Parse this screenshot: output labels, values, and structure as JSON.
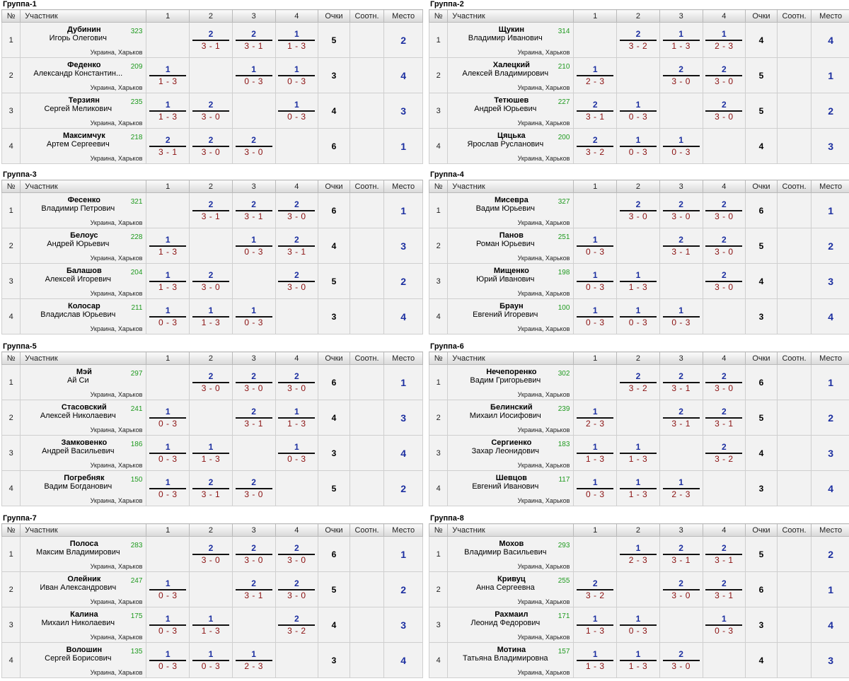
{
  "headers": {
    "no": "№",
    "participant": "Участник",
    "cols": [
      "1",
      "2",
      "3",
      "4"
    ],
    "points": "Очки",
    "ratio": "Соотн.",
    "place": "Место"
  },
  "groups": [
    {
      "title": "Группа-1",
      "players": [
        {
          "no": "1",
          "last": "Дубинин",
          "first": "Игорь Олегович",
          "rating": "323",
          "city": "Украина, Харьков",
          "results": [
            null,
            {
              "w": "2",
              "s": "3 - 1"
            },
            {
              "w": "2",
              "s": "3 - 1"
            },
            {
              "w": "1",
              "s": "1 - 3"
            }
          ],
          "points": "5",
          "ratio": "",
          "place": "2"
        },
        {
          "no": "2",
          "last": "Феденко",
          "first": "Александр Константин...",
          "rating": "209",
          "city": "Украина, Харьков",
          "results": [
            {
              "w": "1",
              "s": "1 - 3"
            },
            null,
            {
              "w": "1",
              "s": "0 - 3"
            },
            {
              "w": "1",
              "s": "0 - 3"
            }
          ],
          "points": "3",
          "ratio": "",
          "place": "4"
        },
        {
          "no": "3",
          "last": "Терзиян",
          "first": "Сергей Меликович",
          "rating": "235",
          "city": "Украина, Харьков",
          "results": [
            {
              "w": "1",
              "s": "1 - 3"
            },
            {
              "w": "2",
              "s": "3 - 0"
            },
            null,
            {
              "w": "1",
              "s": "0 - 3"
            }
          ],
          "points": "4",
          "ratio": "",
          "place": "3"
        },
        {
          "no": "4",
          "last": "Максимчук",
          "first": "Артем Сергеевич",
          "rating": "218",
          "city": "Украина, Харьков",
          "results": [
            {
              "w": "2",
              "s": "3 - 1"
            },
            {
              "w": "2",
              "s": "3 - 0"
            },
            {
              "w": "2",
              "s": "3 - 0"
            },
            null
          ],
          "points": "6",
          "ratio": "",
          "place": "1"
        }
      ]
    },
    {
      "title": "Группа-2",
      "players": [
        {
          "no": "1",
          "last": "Щукин",
          "first": "Владимир Иванович",
          "rating": "314",
          "city": "Украина, Харьков",
          "results": [
            null,
            {
              "w": "2",
              "s": "3 - 2"
            },
            {
              "w": "1",
              "s": "1 - 3"
            },
            {
              "w": "1",
              "s": "2 - 3"
            }
          ],
          "points": "4",
          "ratio": "",
          "place": "4"
        },
        {
          "no": "2",
          "last": "Халецкий",
          "first": "Алексей Владимирович",
          "rating": "210",
          "city": "Украина, Харьков",
          "results": [
            {
              "w": "1",
              "s": "2 - 3"
            },
            null,
            {
              "w": "2",
              "s": "3 - 0"
            },
            {
              "w": "2",
              "s": "3 - 0"
            }
          ],
          "points": "5",
          "ratio": "",
          "place": "1"
        },
        {
          "no": "3",
          "last": "Тетюшев",
          "first": "Андрей Юрьевич",
          "rating": "227",
          "city": "Украина, Харьков",
          "results": [
            {
              "w": "2",
              "s": "3 - 1"
            },
            {
              "w": "1",
              "s": "0 - 3"
            },
            null,
            {
              "w": "2",
              "s": "3 - 0"
            }
          ],
          "points": "5",
          "ratio": "",
          "place": "2"
        },
        {
          "no": "4",
          "last": "Цяцька",
          "first": "Ярослав Русланович",
          "rating": "200",
          "city": "Украина, Харьков",
          "results": [
            {
              "w": "2",
              "s": "3 - 2"
            },
            {
              "w": "1",
              "s": "0 - 3"
            },
            {
              "w": "1",
              "s": "0 - 3"
            },
            null
          ],
          "points": "4",
          "ratio": "",
          "place": "3"
        }
      ]
    },
    {
      "title": "Группа-3",
      "players": [
        {
          "no": "1",
          "last": "Фесенко",
          "first": "Владимир Петрович",
          "rating": "321",
          "city": "Украина, Харьков",
          "results": [
            null,
            {
              "w": "2",
              "s": "3 - 1"
            },
            {
              "w": "2",
              "s": "3 - 1"
            },
            {
              "w": "2",
              "s": "3 - 0"
            }
          ],
          "points": "6",
          "ratio": "",
          "place": "1"
        },
        {
          "no": "2",
          "last": "Белоус",
          "first": "Андрей Юрьевич",
          "rating": "228",
          "city": "Украина, Харьков",
          "results": [
            {
              "w": "1",
              "s": "1 - 3"
            },
            null,
            {
              "w": "1",
              "s": "0 - 3"
            },
            {
              "w": "2",
              "s": "3 - 1"
            }
          ],
          "points": "4",
          "ratio": "",
          "place": "3"
        },
        {
          "no": "3",
          "last": "Балашов",
          "first": "Алексей Игоревич",
          "rating": "204",
          "city": "Украина, Харьков",
          "results": [
            {
              "w": "1",
              "s": "1 - 3"
            },
            {
              "w": "2",
              "s": "3 - 0"
            },
            null,
            {
              "w": "2",
              "s": "3 - 0"
            }
          ],
          "points": "5",
          "ratio": "",
          "place": "2"
        },
        {
          "no": "4",
          "last": "Колосар",
          "first": "Владислав Юрьевич",
          "rating": "211",
          "city": "Украина, Харьков",
          "results": [
            {
              "w": "1",
              "s": "0 - 3"
            },
            {
              "w": "1",
              "s": "1 - 3"
            },
            {
              "w": "1",
              "s": "0 - 3"
            },
            null
          ],
          "points": "3",
          "ratio": "",
          "place": "4"
        }
      ]
    },
    {
      "title": "Группа-4",
      "players": [
        {
          "no": "1",
          "last": "Мисевра",
          "first": "Вадим Юрьевич",
          "rating": "327",
          "city": "Украина, Харьков",
          "results": [
            null,
            {
              "w": "2",
              "s": "3 - 0"
            },
            {
              "w": "2",
              "s": "3 - 0"
            },
            {
              "w": "2",
              "s": "3 - 0"
            }
          ],
          "points": "6",
          "ratio": "",
          "place": "1"
        },
        {
          "no": "2",
          "last": "Панов",
          "first": "Роман Юрьевич",
          "rating": "251",
          "city": "Украина, Харьков",
          "results": [
            {
              "w": "1",
              "s": "0 - 3"
            },
            null,
            {
              "w": "2",
              "s": "3 - 1"
            },
            {
              "w": "2",
              "s": "3 - 0"
            }
          ],
          "points": "5",
          "ratio": "",
          "place": "2"
        },
        {
          "no": "3",
          "last": "Мищенко",
          "first": "Юрий Иванович",
          "rating": "198",
          "city": "Украина, Харьков",
          "results": [
            {
              "w": "1",
              "s": "0 - 3"
            },
            {
              "w": "1",
              "s": "1 - 3"
            },
            null,
            {
              "w": "2",
              "s": "3 - 0"
            }
          ],
          "points": "4",
          "ratio": "",
          "place": "3"
        },
        {
          "no": "4",
          "last": "Браун",
          "first": "Евгений Игоревич",
          "rating": "100",
          "city": "Украина, Харьков",
          "results": [
            {
              "w": "1",
              "s": "0 - 3"
            },
            {
              "w": "1",
              "s": "0 - 3"
            },
            {
              "w": "1",
              "s": "0 - 3"
            },
            null
          ],
          "points": "3",
          "ratio": "",
          "place": "4"
        }
      ]
    },
    {
      "title": "Группа-5",
      "players": [
        {
          "no": "1",
          "last": "Мэй",
          "first": "Ай Си",
          "rating": "297",
          "city": "Украина, Харьков",
          "results": [
            null,
            {
              "w": "2",
              "s": "3 - 0"
            },
            {
              "w": "2",
              "s": "3 - 0"
            },
            {
              "w": "2",
              "s": "3 - 0"
            }
          ],
          "points": "6",
          "ratio": "",
          "place": "1"
        },
        {
          "no": "2",
          "last": "Стасовский",
          "first": "Алексей Николаевич",
          "rating": "241",
          "city": "Украина, Харьков",
          "results": [
            {
              "w": "1",
              "s": "0 - 3"
            },
            null,
            {
              "w": "2",
              "s": "3 - 1"
            },
            {
              "w": "1",
              "s": "1 - 3"
            }
          ],
          "points": "4",
          "ratio": "",
          "place": "3"
        },
        {
          "no": "3",
          "last": "Замковенко",
          "first": "Андрей Васильевич",
          "rating": "186",
          "city": "Украина, Харьков",
          "results": [
            {
              "w": "1",
              "s": "0 - 3"
            },
            {
              "w": "1",
              "s": "1 - 3"
            },
            null,
            {
              "w": "1",
              "s": "0 - 3"
            }
          ],
          "points": "3",
          "ratio": "",
          "place": "4"
        },
        {
          "no": "4",
          "last": "Погребняк",
          "first": "Вадим Богданович",
          "rating": "150",
          "city": "Украина, Харьков",
          "results": [
            {
              "w": "1",
              "s": "0 - 3"
            },
            {
              "w": "2",
              "s": "3 - 1"
            },
            {
              "w": "2",
              "s": "3 - 0"
            },
            null
          ],
          "points": "5",
          "ratio": "",
          "place": "2"
        }
      ]
    },
    {
      "title": "Группа-6",
      "players": [
        {
          "no": "1",
          "last": "Нечепоренко",
          "first": "Вадим Григорьевич",
          "rating": "302",
          "city": "Украина, Харьков",
          "results": [
            null,
            {
              "w": "2",
              "s": "3 - 2"
            },
            {
              "w": "2",
              "s": "3 - 1"
            },
            {
              "w": "2",
              "s": "3 - 0"
            }
          ],
          "points": "6",
          "ratio": "",
          "place": "1"
        },
        {
          "no": "2",
          "last": "Белинский",
          "first": "Михаил Иосифович",
          "rating": "239",
          "city": "Украина, Харьков",
          "results": [
            {
              "w": "1",
              "s": "2 - 3"
            },
            null,
            {
              "w": "2",
              "s": "3 - 1"
            },
            {
              "w": "2",
              "s": "3 - 1"
            }
          ],
          "points": "5",
          "ratio": "",
          "place": "2"
        },
        {
          "no": "3",
          "last": "Сергиенко",
          "first": "Захар Леонидович",
          "rating": "183",
          "city": "Украина, Харьков",
          "results": [
            {
              "w": "1",
              "s": "1 - 3"
            },
            {
              "w": "1",
              "s": "1 - 3"
            },
            null,
            {
              "w": "2",
              "s": "3 - 2"
            }
          ],
          "points": "4",
          "ratio": "",
          "place": "3"
        },
        {
          "no": "4",
          "last": "Шевцов",
          "first": "Евгений Иванович",
          "rating": "117",
          "city": "Украина, Харьков",
          "results": [
            {
              "w": "1",
              "s": "0 - 3"
            },
            {
              "w": "1",
              "s": "1 - 3"
            },
            {
              "w": "1",
              "s": "2 - 3"
            },
            null
          ],
          "points": "3",
          "ratio": "",
          "place": "4"
        }
      ]
    },
    {
      "title": "Группа-7",
      "players": [
        {
          "no": "1",
          "last": "Полоса",
          "first": "Максим Владимирович",
          "rating": "283",
          "city": "Украина, Харьков",
          "results": [
            null,
            {
              "w": "2",
              "s": "3 - 0"
            },
            {
              "w": "2",
              "s": "3 - 0"
            },
            {
              "w": "2",
              "s": "3 - 0"
            }
          ],
          "points": "6",
          "ratio": "",
          "place": "1"
        },
        {
          "no": "2",
          "last": "Олейник",
          "first": "Иван Александрович",
          "rating": "247",
          "city": "Украина, Харьков",
          "results": [
            {
              "w": "1",
              "s": "0 - 3"
            },
            null,
            {
              "w": "2",
              "s": "3 - 1"
            },
            {
              "w": "2",
              "s": "3 - 0"
            }
          ],
          "points": "5",
          "ratio": "",
          "place": "2"
        },
        {
          "no": "3",
          "last": "Калина",
          "first": "Михаил Николаевич",
          "rating": "175",
          "city": "Украина, Харьков",
          "results": [
            {
              "w": "1",
              "s": "0 - 3"
            },
            {
              "w": "1",
              "s": "1 - 3"
            },
            null,
            {
              "w": "2",
              "s": "3 - 2"
            }
          ],
          "points": "4",
          "ratio": "",
          "place": "3"
        },
        {
          "no": "4",
          "last": "Волошин",
          "first": "Сергей Борисович",
          "rating": "135",
          "city": "Украина, Харьков",
          "results": [
            {
              "w": "1",
              "s": "0 - 3"
            },
            {
              "w": "1",
              "s": "0 - 3"
            },
            {
              "w": "1",
              "s": "2 - 3"
            },
            null
          ],
          "points": "3",
          "ratio": "",
          "place": "4"
        }
      ]
    },
    {
      "title": "Группа-8",
      "players": [
        {
          "no": "1",
          "last": "Мохов",
          "first": "Владимир Васильевич",
          "rating": "293",
          "city": "Украина, Харьков",
          "results": [
            null,
            {
              "w": "1",
              "s": "2 - 3"
            },
            {
              "w": "2",
              "s": "3 - 1"
            },
            {
              "w": "2",
              "s": "3 - 1"
            }
          ],
          "points": "5",
          "ratio": "",
          "place": "2"
        },
        {
          "no": "2",
          "last": "Кривуц",
          "first": "Анна Сергеевна",
          "rating": "255",
          "city": "Украина, Харьков",
          "results": [
            {
              "w": "2",
              "s": "3 - 2"
            },
            null,
            {
              "w": "2",
              "s": "3 - 0"
            },
            {
              "w": "2",
              "s": "3 - 1"
            }
          ],
          "points": "6",
          "ratio": "",
          "place": "1"
        },
        {
          "no": "3",
          "last": "Рахмаил",
          "first": "Леонид Федорович",
          "rating": "171",
          "city": "Украина, Харьков",
          "results": [
            {
              "w": "1",
              "s": "1 - 3"
            },
            {
              "w": "1",
              "s": "0 - 3"
            },
            null,
            {
              "w": "1",
              "s": "0 - 3"
            }
          ],
          "points": "3",
          "ratio": "",
          "place": "4"
        },
        {
          "no": "4",
          "last": "Мотина",
          "first": "Татьяна Владимировна",
          "rating": "157",
          "city": "Украина, Харьков",
          "results": [
            {
              "w": "1",
              "s": "1 - 3"
            },
            {
              "w": "1",
              "s": "1 - 3"
            },
            {
              "w": "2",
              "s": "3 - 0"
            },
            null
          ],
          "points": "4",
          "ratio": "",
          "place": "3"
        }
      ]
    }
  ]
}
